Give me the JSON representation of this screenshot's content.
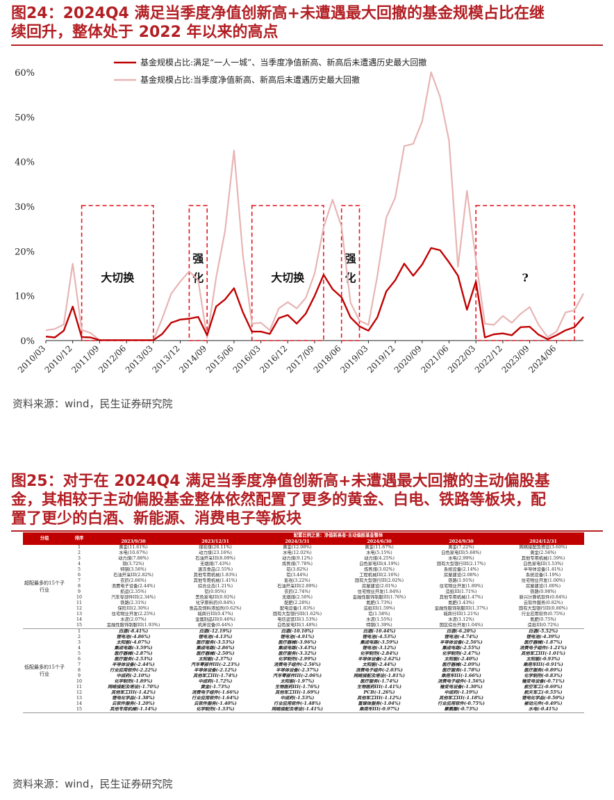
{
  "fig24": {
    "title_line1": "图24：2024Q4 满足当季度净值创新高+未遭遇最大回撤的基金规模占比在继",
    "title_line2": "续回升，整体处于 2022 年以来的高点",
    "source": "资料来源：wind，民生证券研究院"
  },
  "chart_data": {
    "type": "line",
    "title": "",
    "xlabel": "",
    "ylabel": "",
    "ylim": [
      0,
      60
    ],
    "yticks": [
      "0%",
      "10%",
      "20%",
      "30%",
      "40%",
      "50%",
      "60%"
    ],
    "x_ticks": [
      "2010/03",
      "2010/12",
      "2011/09",
      "2012/06",
      "2013/03",
      "2013/12",
      "2014/09",
      "2015/06",
      "2016/03",
      "2016/12",
      "2017/09",
      "2018/06",
      "2019/03",
      "2019/12",
      "2020/09",
      "2021/06",
      "2022/03",
      "2022/12",
      "2023/09",
      "2024/06"
    ],
    "grid": false,
    "legend_position": "top",
    "series": [
      {
        "name": "基金规模占比:满足“一人一城”、当季度净值新高、新高后未遭遇历史最大回撤",
        "color": "#c00000",
        "values": [
          0.9,
          0.7,
          2.2,
          7.6,
          0.8,
          0.7,
          0.1,
          0.1,
          0.1,
          0.1,
          0.1,
          0.1,
          0.1,
          1.5,
          4,
          4.7,
          4.9,
          5.3,
          1.2,
          7.6,
          9.2,
          11.7,
          6.3,
          2,
          2,
          1.5,
          5,
          5.7,
          3.8,
          6,
          10,
          14.7,
          11.5,
          9.7,
          5.2,
          3.2,
          2.2,
          5.2,
          11,
          13.5,
          17.2,
          14.5,
          17,
          20.7,
          20.2,
          17.5,
          14.5,
          6.9,
          13.2,
          0.7,
          1.4,
          1.6,
          1.2,
          3,
          3.1,
          1.3,
          0.3,
          1.2,
          2.3,
          3,
          5.3
        ]
      },
      {
        "name": "基金规模占比:当季度净值新高、新高后未遭遇历史最大回撤",
        "color": "#e8b4b4",
        "values": [
          2.3,
          2.6,
          3.6,
          17.2,
          2.4,
          1.7,
          0.1,
          0.1,
          0.1,
          0.1,
          0.1,
          0.1,
          0.1,
          5,
          10.5,
          13.2,
          15.5,
          13.5,
          0.6,
          14,
          24.5,
          42.5,
          19,
          3.8,
          4,
          2.3,
          7.2,
          8.6,
          7.2,
          9.5,
          15,
          25.3,
          31.5,
          25.5,
          8.5,
          4.5,
          3.5,
          14.5,
          27.5,
          32,
          43.5,
          44,
          49,
          60,
          54.5,
          44.7,
          16.5,
          33.5,
          18,
          3.8,
          3.5,
          5.5,
          4,
          6,
          7.5,
          3.5,
          0.8,
          2,
          6.3,
          6.8,
          10.5
        ]
      }
    ],
    "annotations": [
      {
        "text": "大切换",
        "x_from": "2011/03",
        "x_to": "2013/03"
      },
      {
        "text": "强化",
        "x_from": "2014/03",
        "x_to": "2014/09"
      },
      {
        "text": "大切换",
        "x_from": "2015/12",
        "x_to": "2017/12"
      },
      {
        "text": "强化",
        "x_from": "2018/06",
        "x_to": "2018/12"
      },
      {
        "text": "?",
        "x_from": "2022/03",
        "x_to": "2024/12"
      }
    ]
  },
  "fig25": {
    "title_line1": "图25：对于在 2024Q4 满足当季度净值创新高+未遭遇最大回撤的主动偏股基",
    "title_line2": "金，其相较于主动偏股基金整体依然配置了更多的黄金、白电、铁路等板块，配",
    "title_line3": "置了更少的白酒、新能源、消费电子等板块",
    "source": "资料来源：wind，民生证券研究院",
    "table": {
      "head_group": "分组",
      "head_rank": "排序",
      "head_span": "配置比例之差：净值新高者-主动偏股基金整体",
      "periods": [
        "2023/9/30",
        "2023/12/31",
        "2024/3/31",
        "2024/6/30",
        "2024/9/30",
        "2024/12/31"
      ],
      "group_over": "超配最多的15个子行业",
      "group_under": "低配最多的15个子行业",
      "over_rows": [
        [
          "1",
          "黄金(11.61%)",
          "煤炭煤(28.11%)",
          "黄金(12.08%)",
          "黄金(11.67%)",
          "黄金(7.22%)",
          "网络接配及塔设(3.60%)"
        ],
        [
          "2",
          "水电(10.67%)",
          "动力煤(23.16%)",
          "水电(12.02%)",
          "水电(5.15%)",
          "白色家电III(5.68%)",
          "黄金(2.56%)"
        ],
        [
          "3",
          "动力煤(7.88%)",
          "石油开采III(8.09%)",
          "动力煤(9.12%)",
          "动力煤(4.25%)",
          "水电(2.99%)",
          "其他专用机械(1.59%)"
        ],
        [
          "4",
          "铜(3.72%)",
          "无烟煤(7.43%)",
          "炼焦煤(7.78%)",
          "白色家电III(4.19%)",
          "国有大型银行III(2.17%)",
          "白色家电III(1.53%)"
        ],
        [
          "5",
          "特钢(3.56%)",
          "速冻食品(2.55%)",
          "铝(3.82%)",
          "炼焦煤(3.02%)",
          "系统设备(2.14%)",
          "半导体设备(1.41%)"
        ],
        [
          "6",
          "石油开采III(2.82%)",
          "其他专用机械(1.83%)",
          "铝(3.44%)",
          "工程机械III(2.16%)",
          "房屋建设(2.08%)",
          "系统设备(1.19%)"
        ],
        [
          "7",
          "农药(2.66%)",
          "其他专用机械(1.41%)",
          "影视(3.22%)",
          "国有大型银行III(2.02%)",
          "铁路(1.91%)",
          "住宅物业开发(1.00%)"
        ],
        [
          "8",
          "消费电子设备(2.44%)",
          "综合业态(1.21%)",
          "石油开采III(2.89%)",
          "房屋建设(2.01%)",
          "住宅物业开发(1.89%)",
          "房屋建设(1.00%)"
        ],
        [
          "9",
          "航运(2.35%)",
          "铝(0.95%)",
          "农药(2.74%)",
          "住宅物业开发(1.84%)",
          "造纸III(1.71%)",
          "铁路(0.98%)"
        ],
        [
          "10",
          "汽车零部件III(2.34%)",
          "黑色家电III(0.92%)",
          "无烟煤(2.50%)",
          "金融性服饰制服III(1.76%)",
          "其他专用机械(1.47%)",
          "新兴计算机软件(0.84%)"
        ],
        [
          "11",
          "铁路(2.31%)",
          "化学原料药(0.84%)",
          "配肥(2.28%)",
          "氮肥(1.73%)",
          "氮肥(1.43%)",
          "云软件服务(0.82%)"
        ],
        [
          "12",
          "保险III(2.30%)",
          "食品及饲料添加剂(0.62%)",
          "配电设备(1.83%)",
          "造纸III(1.59%)",
          "金融性服饰制服III(1.37%)",
          "国有大型银行III(0.80%)"
        ],
        [
          "13",
          "住宅物业开发(2.25%)",
          "城商行III(0.47%)",
          "国有大型银行III(1.62%)",
          "铝(1.58%)",
          "城商行III(1.21%)",
          "行业应用软件(0.75%)"
        ],
        [
          "14",
          "水泥(2.07%)",
          "金属制品III(0.46%)",
          "电信运营III(1.53%)",
          "水泥(1.55%)",
          "水泥(1.12%)",
          "氮肥(0.75%)"
        ],
        [
          "15",
          "金融性服饰制服III(1.93%)",
          "机床设备(0.44%)",
          "白色家电III(1.48%)",
          "特钢(1.39%)",
          "国区综合开发(1.04%)",
          "造纸III(0.72%)"
        ]
      ],
      "under_rows": [
        [
          "1",
          "白酒(-8.41%)",
          "白酒(-12.19%)",
          "白酒(-10.10%)",
          "白酒(-10.44%)",
          "白酒(-6.28%)",
          "白酒(-5.52%)"
        ],
        [
          "2",
          "锂电池(-4.86%)",
          "锂电池(-4.13%)",
          "锂电池(-4.91%)",
          "锂电池(-4.53%)",
          "锂电池(-4.74%)",
          "锂电池(-4.39%)"
        ],
        [
          "3",
          "太阳能(-4.07%)",
          "医疗服务(-3.53%)",
          "医疗器械(-3.96%)",
          "集成电路(-3.59%)",
          "半导体设备(-2.56%)",
          "医疗器械(-1.87%)"
        ],
        [
          "4",
          "集成电路(-3.59%)",
          "集成电路(-2.86%)",
          "集成电路(-3.43%)",
          "锂电池(-3.12%)",
          "集成电路(-2.55%)",
          "消费电子组件(-1.21%)"
        ],
        [
          "5",
          "医疗器械(-2.87%)",
          "医疗器械(-2.50%)",
          "医疗服务(-3.32%)",
          "化学制剂(-2.84%)",
          "化学制剂(-2.47%)",
          "其他军工III(-1.01%)"
        ],
        [
          "6",
          "医疗服务(-2.53%)",
          "太阳能(-2.37%)",
          "化学制剂(-2.99%)",
          "半导体设备(-2.62%)",
          "太阳能(-2.40%)",
          "太阳能(-0.93%)"
        ],
        [
          "7",
          "半导体设备(-2.44%)",
          "汽车零部件III(-2.23%)",
          "消费电子组件(-2.56%)",
          "太阳能(-2.44%)",
          "医疗器械(-2.09%)",
          "乘用车III(-0.91%)"
        ],
        [
          "8",
          "行业应用软件(-2.22%)",
          "半导体设备(-2.12%)",
          "半导体设备(-2.37%)",
          "消费电子组件(-2.03%)",
          "医疗服务(-1.78%)",
          "医疗服务(-0.89%)"
        ],
        [
          "9",
          "中成药(-2.10%)",
          "其他军工III(-1.74%)",
          "汽车零部件III(-2.06%)",
          "网络接配及塔设(-1.81%)",
          "乘用车III(-1.66%)",
          "化学制剂(-0.83%)"
        ],
        [
          "10",
          "化学制剂(-1.89%)",
          "中成药(-1.72%)",
          "太阳能(-1.97%)",
          "医疗服务(-1.74%)",
          "消费电子组件(-1.56%)",
          "输变电设备(-0.71%)"
        ],
        [
          "11",
          "网络接配及塔设(-1.70%)",
          "黄金(-1.73%)",
          "生物医药III(-1.76%)",
          "生物医药III(-1.41%)",
          "输变电设备(-1.30%)",
          "航空军工(-0.69%)"
        ],
        [
          "12",
          "其他军工III(-1.42%)",
          "消费电子组件(-1.66%)",
          "其他军工III(-1.69%)",
          "PCB(-1.26%)",
          "中成药(-1.19%)",
          "航天军工(-0.55%)"
        ],
        [
          "13",
          "锂电化学品(-1.38%)",
          "行业应用软件(-1.64%)",
          "中成药(-1.53%)",
          "其他军工III(-1.12%)",
          "其他军工III(-1.18%)",
          "锂电化学品(-0.50%)"
        ],
        [
          "14",
          "云软件服务(-1.20%)",
          "云软件服务(-1.40%)",
          "行业应用软件(-1.48%)",
          "富媒体服务(-1.04%)",
          "行业应用软件(-0.75%)",
          "被动元件(-0.49%)"
        ],
        [
          "15",
          "其他专用机械(-1.14%)",
          "化学制剂(-1.33%)",
          "网络接配及塔设(-1.41%)",
          "乘用车III(-0.97%)",
          "聚氨酯(-0.73%)",
          "水电(-0.41%)"
        ]
      ]
    }
  }
}
